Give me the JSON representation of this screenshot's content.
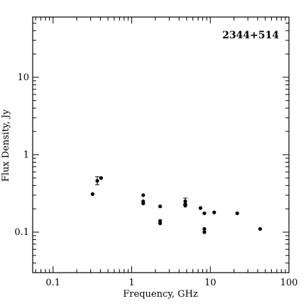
{
  "chart_data": {
    "type": "scatter",
    "title": "",
    "annotation": "2344+514",
    "xlabel": "Frequency, GHz",
    "ylabel": "Flux Density, Jy",
    "x_scale": "log",
    "y_scale": "log",
    "xlim": [
      0.055,
      100
    ],
    "ylim": [
      0.03,
      60
    ],
    "x_ticks": [
      {
        "value": 0.1,
        "label": "0.1"
      },
      {
        "value": 1,
        "label": "1"
      },
      {
        "value": 10,
        "label": "10"
      },
      {
        "value": 100,
        "label": "100"
      }
    ],
    "y_ticks": [
      {
        "value": 0.1,
        "label": "0.1"
      },
      {
        "value": 1,
        "label": "1"
      },
      {
        "value": 10,
        "label": "10"
      }
    ],
    "grid": false,
    "legend": "none",
    "points": [
      {
        "x": 0.318,
        "y": 0.31
      },
      {
        "x": 0.365,
        "y": 0.46,
        "err_low": 0.41,
        "err_high": 0.52
      },
      {
        "x": 0.408,
        "y": 0.5
      },
      {
        "x": 1.4,
        "y": 0.3
      },
      {
        "x": 1.4,
        "y": 0.25
      },
      {
        "x": 1.4,
        "y": 0.235
      },
      {
        "x": 2.3,
        "y": 0.215
      },
      {
        "x": 2.3,
        "y": 0.14
      },
      {
        "x": 2.3,
        "y": 0.13
      },
      {
        "x": 4.8,
        "y": 0.25,
        "err_low": 0.225,
        "err_high": 0.275
      },
      {
        "x": 4.8,
        "y": 0.23
      },
      {
        "x": 4.8,
        "y": 0.22
      },
      {
        "x": 7.5,
        "y": 0.205
      },
      {
        "x": 8.4,
        "y": 0.175
      },
      {
        "x": 8.4,
        "y": 0.11
      },
      {
        "x": 8.4,
        "y": 0.1
      },
      {
        "x": 11.2,
        "y": 0.18
      },
      {
        "x": 22.0,
        "y": 0.175
      },
      {
        "x": 43.0,
        "y": 0.11
      }
    ]
  }
}
